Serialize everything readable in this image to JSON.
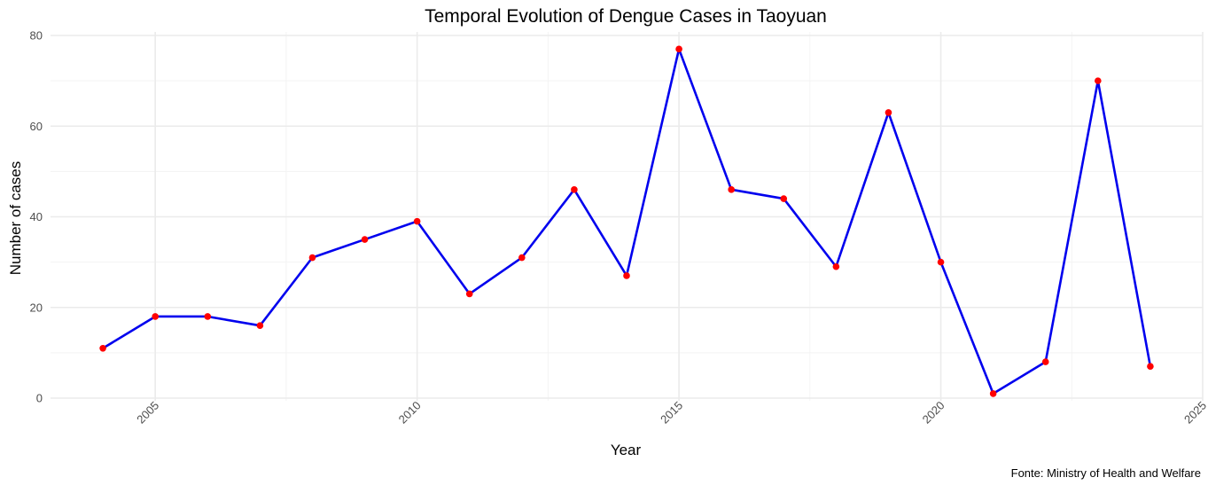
{
  "chart_data": {
    "type": "line",
    "title": "Temporal Evolution of Dengue Cases in Taoyuan",
    "xlabel": "Year",
    "ylabel": "Number of cases",
    "caption": "Fonte: Ministry of Health and Welfare",
    "x": [
      2004,
      2005,
      2006,
      2007,
      2008,
      2009,
      2010,
      2011,
      2012,
      2013,
      2014,
      2015,
      2016,
      2017,
      2018,
      2019,
      2020,
      2021,
      2022,
      2023,
      2024
    ],
    "series": [
      {
        "values": [
          11,
          18,
          18,
          16,
          31,
          35,
          39,
          23,
          31,
          46,
          27,
          77,
          46,
          44,
          29,
          63,
          30,
          1,
          8,
          70,
          7
        ],
        "line_color": "#0000ee",
        "point_color": "#ff0000"
      }
    ],
    "xlim": [
      2003,
      2025
    ],
    "ylim": [
      0,
      80
    ],
    "x_ticks": [
      2005,
      2010,
      2015,
      2020,
      2025
    ],
    "y_ticks": [
      0,
      20,
      40,
      60,
      80
    ],
    "grid": true,
    "legend": "none"
  }
}
